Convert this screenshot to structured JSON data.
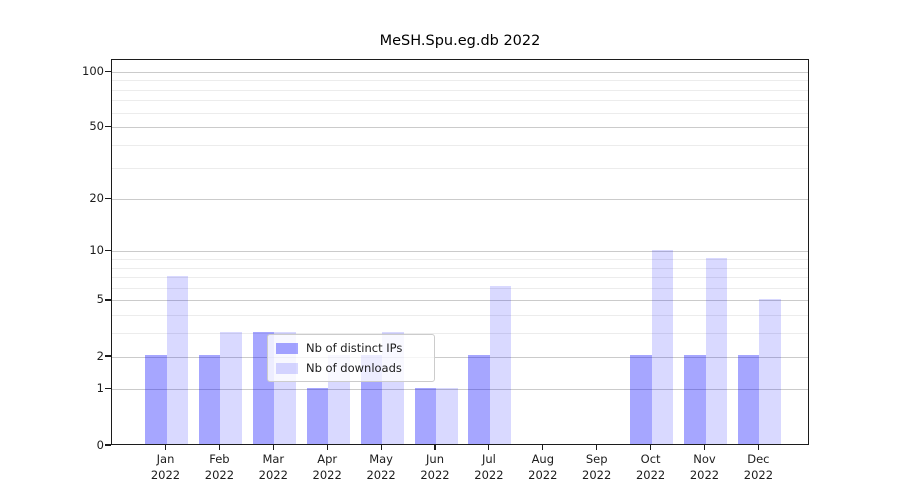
{
  "chart_data": {
    "type": "bar",
    "title": "MeSH.Spu.eg.db 2022",
    "categories": [
      "Jan 2022",
      "Feb 2022",
      "Mar 2022",
      "Apr 2022",
      "May 2022",
      "Jun 2022",
      "Jul 2022",
      "Aug 2022",
      "Sep 2022",
      "Oct 2022",
      "Nov 2022",
      "Dec 2022"
    ],
    "series": [
      {
        "name": "Nb of distinct IPs",
        "color": "rgba(0,0,255,0.35)",
        "values": [
          2,
          2,
          3,
          1,
          2,
          1,
          2,
          0,
          0,
          2,
          2,
          2
        ]
      },
      {
        "name": "Nb of downloads",
        "color": "rgba(0,0,255,0.15)",
        "values": [
          7,
          3,
          3,
          2,
          3,
          1,
          6,
          0,
          0,
          10,
          9,
          5
        ]
      }
    ],
    "xlabel": "",
    "ylabel": "",
    "yscale": "log1p",
    "yticks": [
      0,
      1,
      2,
      5,
      10,
      20,
      50,
      100
    ],
    "minor_gridline_values": [
      3,
      4,
      6,
      7,
      8,
      9,
      30,
      40,
      60,
      70,
      80,
      90
    ],
    "ylim": [
      0,
      115
    ],
    "grid": true,
    "legend_position": "lower center",
    "colors": {
      "bar_dark": "rgba(0,0,255,0.35)",
      "bar_light": "rgba(0,0,255,0.15)",
      "major_grid": "#cbcbcb",
      "minor_grid": "#ececec",
      "axis": "#1c1c1c",
      "background": "#ffffff"
    }
  }
}
